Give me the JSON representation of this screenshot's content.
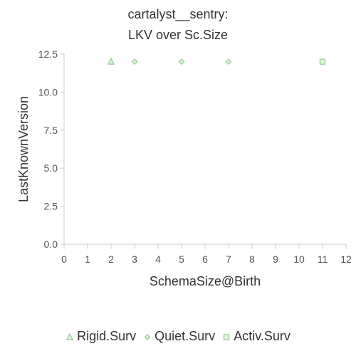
{
  "chart_data": {
    "type": "scatter",
    "title": "cartalyst__sentry:",
    "subtitle": "LKV over Sc.Size",
    "xlabel": "SchemaSize@Birth",
    "ylabel": "LastKnownVersion",
    "xlim": [
      0,
      12
    ],
    "ylim": [
      0,
      12.5
    ],
    "xticks": [
      "0",
      "1",
      "2",
      "3",
      "4",
      "5",
      "6",
      "7",
      "8",
      "9",
      "10",
      "11",
      "12"
    ],
    "yticks": [
      "0.0",
      "2.5",
      "5.0",
      "7.5",
      "10.0",
      "12.5"
    ],
    "grid": false,
    "legend_position": "bottom",
    "series": [
      {
        "name": "Rigid.Surv",
        "marker": "triangle",
        "color": "#9fd49f",
        "points": [
          {
            "x": 2,
            "y": 12
          }
        ]
      },
      {
        "name": "Quiet.Surv",
        "marker": "diamond",
        "color": "#9fd49f",
        "points": [
          {
            "x": 3,
            "y": 12
          },
          {
            "x": 5,
            "y": 12
          },
          {
            "x": 7,
            "y": 12
          }
        ]
      },
      {
        "name": "Activ.Surv",
        "marker": "square",
        "color": "#9fd49f",
        "points": [
          {
            "x": 11,
            "y": 12
          }
        ]
      }
    ]
  }
}
